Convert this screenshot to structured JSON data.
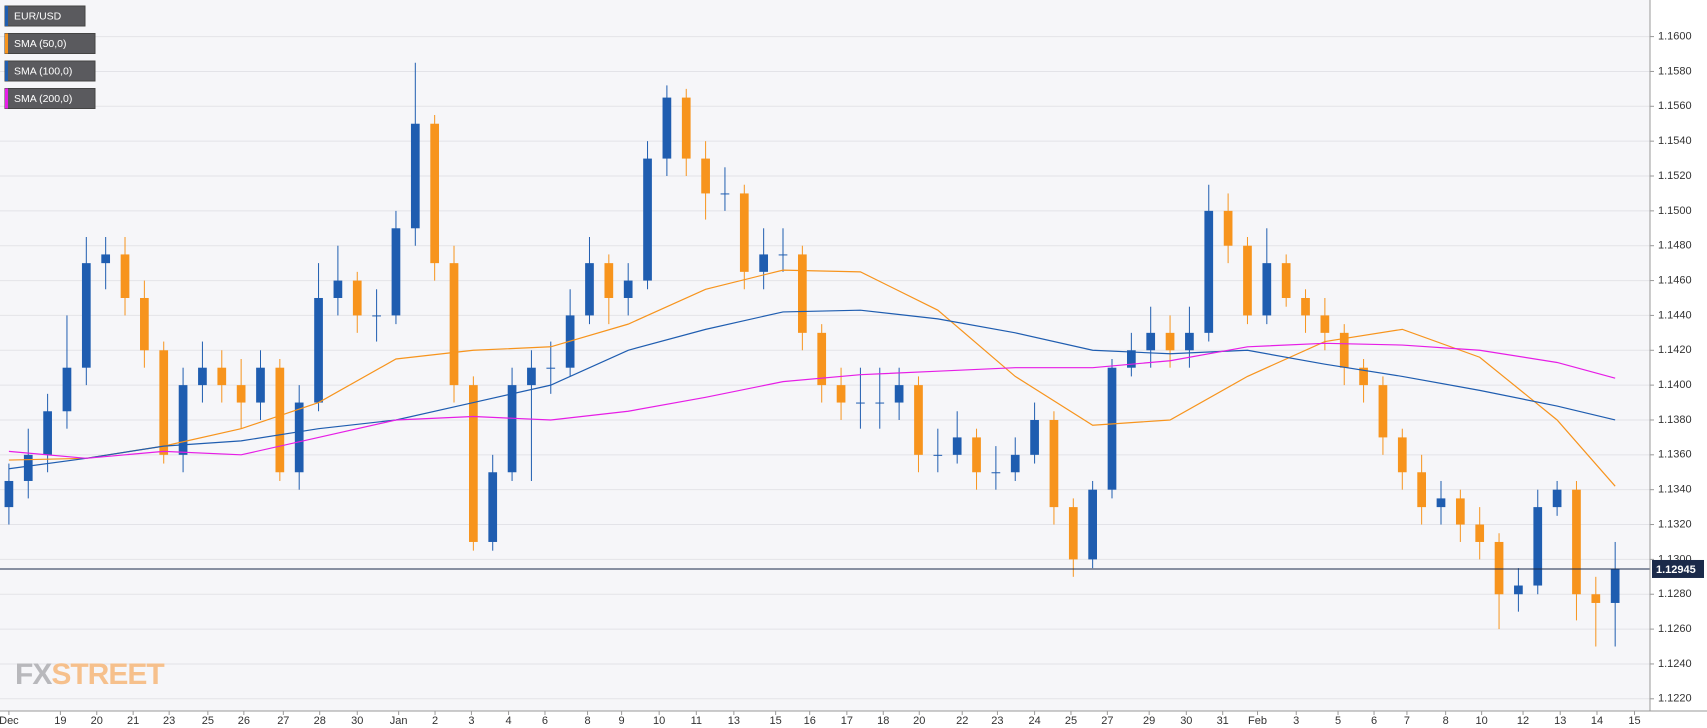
{
  "chart_data": {
    "type": "candlestick",
    "series": [
      {
        "name": "EUR/USD",
        "type": "candlestick",
        "color": "#1f5db0",
        "up_color": "#1f5db0",
        "down_color": "#f7941d",
        "x": [
          0,
          0.5,
          1,
          1.5,
          2,
          2.5,
          3,
          3.5,
          4,
          4.5,
          5,
          5.5,
          6,
          6.5,
          7,
          7.5,
          8,
          8.5,
          9,
          9.5,
          10,
          10.5,
          11,
          11.5,
          12,
          12.5,
          13,
          13.5,
          14,
          14.5,
          15,
          15.5,
          16,
          16.5,
          17,
          17.5,
          18,
          18.5,
          19,
          19.5,
          20,
          20.5,
          21,
          21.5,
          22,
          22.5,
          23,
          23.5,
          24,
          24.5,
          25,
          25.5,
          26,
          26.5,
          27,
          27.5,
          28,
          28.5,
          29,
          29.5,
          30,
          30.5,
          31,
          31.5,
          32,
          32.5,
          33,
          33.5,
          34,
          34.5,
          35,
          35.5,
          36,
          36.5,
          37,
          37.5,
          38,
          38.5,
          39,
          39.5,
          40,
          40.5,
          41,
          41.5
        ],
        "open": [
          1.133,
          1.1345,
          1.136,
          1.1385,
          1.141,
          1.147,
          1.1475,
          1.145,
          1.142,
          1.136,
          1.14,
          1.141,
          1.14,
          1.139,
          1.141,
          1.135,
          1.139,
          1.145,
          1.146,
          1.144,
          1.144,
          1.149,
          1.155,
          1.147,
          1.14,
          1.131,
          1.135,
          1.14,
          1.141,
          1.141,
          1.144,
          1.147,
          1.145,
          1.146,
          1.153,
          1.1565,
          1.153,
          1.151,
          1.151,
          1.1465,
          1.1475,
          1.1475,
          1.143,
          1.14,
          1.139,
          1.139,
          1.139,
          1.14,
          1.136,
          1.136,
          1.137,
          1.135,
          1.135,
          1.136,
          1.138,
          1.133,
          1.13,
          1.134,
          1.141,
          1.142,
          1.143,
          1.142,
          1.143,
          1.15,
          1.148,
          1.144,
          1.147,
          1.145,
          1.144,
          1.143,
          1.141,
          1.14,
          1.137,
          1.135,
          1.133,
          1.1335,
          1.132,
          1.131,
          1.128,
          1.1285,
          1.133,
          1.134,
          1.128,
          1.1275
        ],
        "high": [
          1.1355,
          1.1375,
          1.1395,
          1.144,
          1.1485,
          1.1485,
          1.1485,
          1.146,
          1.1425,
          1.141,
          1.1425,
          1.142,
          1.1415,
          1.142,
          1.1415,
          1.14,
          1.147,
          1.148,
          1.1465,
          1.1455,
          1.15,
          1.1585,
          1.1555,
          1.148,
          1.1405,
          1.136,
          1.141,
          1.142,
          1.1425,
          1.1455,
          1.1485,
          1.1475,
          1.147,
          1.154,
          1.1572,
          1.157,
          1.154,
          1.1525,
          1.1515,
          1.149,
          1.149,
          1.148,
          1.1435,
          1.141,
          1.141,
          1.141,
          1.141,
          1.1405,
          1.1375,
          1.1385,
          1.1375,
          1.1365,
          1.137,
          1.139,
          1.1385,
          1.1335,
          1.1345,
          1.1415,
          1.143,
          1.1445,
          1.144,
          1.1445,
          1.1515,
          1.151,
          1.1485,
          1.149,
          1.1475,
          1.1455,
          1.145,
          1.1435,
          1.1415,
          1.1405,
          1.1375,
          1.136,
          1.1345,
          1.134,
          1.133,
          1.1315,
          1.1295,
          1.134,
          1.1345,
          1.1345,
          1.129,
          1.131
        ],
        "low": [
          1.132,
          1.1335,
          1.135,
          1.1375,
          1.14,
          1.1455,
          1.144,
          1.141,
          1.1355,
          1.135,
          1.139,
          1.139,
          1.1375,
          1.138,
          1.1345,
          1.134,
          1.1385,
          1.144,
          1.143,
          1.1425,
          1.1435,
          1.148,
          1.146,
          1.139,
          1.1305,
          1.1305,
          1.1345,
          1.1345,
          1.1395,
          1.1405,
          1.1435,
          1.1435,
          1.144,
          1.1455,
          1.152,
          1.152,
          1.1495,
          1.15,
          1.1455,
          1.1455,
          1.1465,
          1.142,
          1.139,
          1.138,
          1.1375,
          1.1375,
          1.138,
          1.135,
          1.135,
          1.1355,
          1.134,
          1.134,
          1.1345,
          1.1355,
          1.132,
          1.129,
          1.1295,
          1.1335,
          1.1405,
          1.141,
          1.141,
          1.141,
          1.1425,
          1.147,
          1.1435,
          1.1435,
          1.1445,
          1.143,
          1.142,
          1.14,
          1.139,
          1.136,
          1.134,
          1.132,
          1.132,
          1.131,
          1.13,
          1.126,
          1.127,
          1.128,
          1.1325,
          1.1265,
          1.125,
          1.125
        ],
        "close": [
          1.1345,
          1.136,
          1.1385,
          1.141,
          1.147,
          1.1475,
          1.145,
          1.142,
          1.136,
          1.14,
          1.141,
          1.14,
          1.139,
          1.141,
          1.135,
          1.139,
          1.145,
          1.146,
          1.144,
          1.144,
          1.149,
          1.155,
          1.147,
          1.14,
          1.131,
          1.135,
          1.14,
          1.141,
          1.141,
          1.144,
          1.147,
          1.145,
          1.146,
          1.153,
          1.1565,
          1.153,
          1.151,
          1.151,
          1.1465,
          1.1475,
          1.1475,
          1.143,
          1.14,
          1.139,
          1.139,
          1.139,
          1.14,
          1.136,
          1.136,
          1.137,
          1.135,
          1.135,
          1.136,
          1.138,
          1.133,
          1.13,
          1.134,
          1.141,
          1.142,
          1.143,
          1.142,
          1.143,
          1.15,
          1.148,
          1.144,
          1.147,
          1.145,
          1.144,
          1.143,
          1.141,
          1.14,
          1.137,
          1.135,
          1.133,
          1.1335,
          1.132,
          1.131,
          1.128,
          1.1285,
          1.133,
          1.134,
          1.128,
          1.1275,
          1.12945
        ]
      },
      {
        "name": "SMA (50,0)",
        "type": "line",
        "color": "#f7941d",
        "x": [
          0,
          2,
          4,
          6,
          8,
          10,
          12,
          14,
          16,
          18,
          20,
          22,
          24,
          26,
          28,
          30,
          32,
          34,
          36,
          38,
          40,
          41.5
        ],
        "values": [
          1.1357,
          1.1358,
          1.1365,
          1.1375,
          1.139,
          1.1415,
          1.142,
          1.1422,
          1.1435,
          1.1455,
          1.1466,
          1.1465,
          1.1443,
          1.1405,
          1.1377,
          1.138,
          1.1405,
          1.1425,
          1.1432,
          1.1416,
          1.138,
          1.1342
        ]
      },
      {
        "name": "SMA (100,0)",
        "type": "line",
        "color": "#1f5db0",
        "x": [
          0,
          2,
          4,
          6,
          8,
          10,
          12,
          14,
          16,
          18,
          20,
          22,
          24,
          26,
          28,
          30,
          32,
          34,
          36,
          38,
          40,
          41.5
        ],
        "values": [
          1.1352,
          1.1358,
          1.1365,
          1.1368,
          1.1375,
          1.138,
          1.139,
          1.14,
          1.142,
          1.1432,
          1.1442,
          1.1443,
          1.1438,
          1.143,
          1.142,
          1.1418,
          1.142,
          1.1412,
          1.1405,
          1.1397,
          1.1388,
          1.138
        ]
      },
      {
        "name": "SMA (200,0)",
        "type": "line",
        "color": "#e61ee6",
        "x": [
          0,
          2,
          4,
          6,
          8,
          10,
          12,
          14,
          16,
          18,
          20,
          22,
          24,
          26,
          28,
          30,
          32,
          34,
          36,
          38,
          40,
          41.5
        ],
        "values": [
          1.1362,
          1.1358,
          1.1362,
          1.136,
          1.137,
          1.138,
          1.1382,
          1.138,
          1.1385,
          1.1393,
          1.1402,
          1.1406,
          1.1408,
          1.141,
          1.141,
          1.1414,
          1.1422,
          1.1424,
          1.1423,
          1.142,
          1.1413,
          1.1404
        ]
      }
    ],
    "current_price": 1.12945,
    "ylim": [
      1.1213,
      1.1621
    ],
    "yticks": [
      {
        "value": 1.122,
        "label": "1.1220"
      },
      {
        "value": 1.124,
        "label": "1.1240"
      },
      {
        "value": 1.126,
        "label": "1.1260"
      },
      {
        "value": 1.128,
        "label": "1.1280"
      },
      {
        "value": 1.13,
        "label": "1.1300"
      },
      {
        "value": 1.132,
        "label": "1.1320"
      },
      {
        "value": 1.134,
        "label": "1.1340"
      },
      {
        "value": 1.136,
        "label": "1.1360"
      },
      {
        "value": 1.138,
        "label": "1.1380"
      },
      {
        "value": 1.14,
        "label": "1.1400"
      },
      {
        "value": 1.142,
        "label": "1.1420"
      },
      {
        "value": 1.144,
        "label": "1.1440"
      },
      {
        "value": 1.146,
        "label": "1.1460"
      },
      {
        "value": 1.148,
        "label": "1.1480"
      },
      {
        "value": 1.15,
        "label": "1.1500"
      },
      {
        "value": 1.152,
        "label": "1.1520"
      },
      {
        "value": 1.154,
        "label": "1.1540"
      },
      {
        "value": 1.156,
        "label": "1.1560"
      },
      {
        "value": 1.158,
        "label": "1.1580"
      },
      {
        "value": 1.16,
        "label": "1.1600"
      }
    ],
    "xlim": [
      -0.23,
      42.4
    ],
    "xticks": [
      {
        "value": 0,
        "label": "Dec"
      },
      {
        "value": 1.33,
        "label": "19"
      },
      {
        "value": 2.27,
        "label": "20"
      },
      {
        "value": 3.21,
        "label": "21"
      },
      {
        "value": 4.14,
        "label": "23"
      },
      {
        "value": 5.14,
        "label": "25"
      },
      {
        "value": 6.07,
        "label": "26"
      },
      {
        "value": 7.09,
        "label": "27"
      },
      {
        "value": 8.03,
        "label": "28"
      },
      {
        "value": 9.0,
        "label": "30"
      },
      {
        "value": 10.07,
        "label": "Jan"
      },
      {
        "value": 11.01,
        "label": "2"
      },
      {
        "value": 11.95,
        "label": "3"
      },
      {
        "value": 12.91,
        "label": "4"
      },
      {
        "value": 13.85,
        "label": "6"
      },
      {
        "value": 14.95,
        "label": "8"
      },
      {
        "value": 15.83,
        "label": "9"
      },
      {
        "value": 16.8,
        "label": "10"
      },
      {
        "value": 17.76,
        "label": "11"
      },
      {
        "value": 18.73,
        "label": "13"
      },
      {
        "value": 19.81,
        "label": "15"
      },
      {
        "value": 20.69,
        "label": "16"
      },
      {
        "value": 21.65,
        "label": "17"
      },
      {
        "value": 22.59,
        "label": "18"
      },
      {
        "value": 23.52,
        "label": "20"
      },
      {
        "value": 24.63,
        "label": "22"
      },
      {
        "value": 25.54,
        "label": "23"
      },
      {
        "value": 26.5,
        "label": "24"
      },
      {
        "value": 27.44,
        "label": "25"
      },
      {
        "value": 28.38,
        "label": "27"
      },
      {
        "value": 29.46,
        "label": "29"
      },
      {
        "value": 30.42,
        "label": "30"
      },
      {
        "value": 31.36,
        "label": "31"
      },
      {
        "value": 32.26,
        "label": "Feb"
      },
      {
        "value": 33.26,
        "label": "3"
      },
      {
        "value": 34.34,
        "label": "5"
      },
      {
        "value": 35.27,
        "label": "6"
      },
      {
        "value": 36.12,
        "label": "7"
      },
      {
        "value": 37.12,
        "label": "8"
      },
      {
        "value": 38.05,
        "label": "10"
      },
      {
        "value": 39.12,
        "label": "12"
      },
      {
        "value": 40.08,
        "label": "13"
      },
      {
        "value": 41.03,
        "label": "14"
      },
      {
        "value": 42.0,
        "label": "15"
      }
    ],
    "grid": true,
    "legend": "top-left",
    "watermark": {
      "first": "FX",
      "second": "STREET"
    }
  }
}
